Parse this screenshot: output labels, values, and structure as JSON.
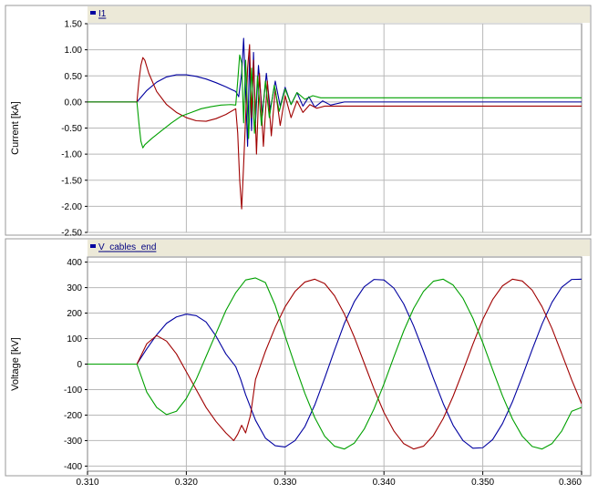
{
  "chart_data": [
    {
      "type": "line",
      "title": "",
      "legend_label": "I1",
      "legend_position": "top-left",
      "xlabel": "",
      "ylabel": "Current [kA]",
      "xlim": [
        0.31,
        0.36
      ],
      "ylim": [
        -2.5,
        1.5
      ],
      "grid": true,
      "x_ticks": [
        "0.310",
        "0.320",
        "0.330",
        "0.340",
        "0.350",
        "0.360"
      ],
      "y_ticks": [
        "1.50",
        "1.00",
        "0.50",
        "0.00",
        "-0.50",
        "-1.00",
        "-1.50",
        "-2.00",
        "-2.50"
      ],
      "series": [
        {
          "color": "#0000a0",
          "points": [
            [
              0.31,
              0.0
            ],
            [
              0.315,
              0.0
            ],
            [
              0.316,
              0.22
            ],
            [
              0.317,
              0.38
            ],
            [
              0.318,
              0.48
            ],
            [
              0.319,
              0.52
            ],
            [
              0.32,
              0.52
            ],
            [
              0.321,
              0.49
            ],
            [
              0.322,
              0.44
            ],
            [
              0.323,
              0.37
            ],
            [
              0.324,
              0.29
            ],
            [
              0.325,
              0.2
            ],
            [
              0.3253,
              0.1
            ],
            [
              0.3256,
              0.55
            ],
            [
              0.3258,
              1.22
            ],
            [
              0.326,
              0.2
            ],
            [
              0.3262,
              -0.85
            ],
            [
              0.3264,
              0.9
            ],
            [
              0.3266,
              -0.55
            ],
            [
              0.3268,
              0.95
            ],
            [
              0.327,
              -0.4
            ],
            [
              0.3273,
              0.7
            ],
            [
              0.3277,
              -0.25
            ],
            [
              0.3281,
              0.55
            ],
            [
              0.3285,
              -0.15
            ],
            [
              0.329,
              0.4
            ],
            [
              0.3295,
              -0.08
            ],
            [
              0.33,
              0.28
            ],
            [
              0.3306,
              -0.05
            ],
            [
              0.3312,
              0.18
            ],
            [
              0.3318,
              -0.08
            ],
            [
              0.3324,
              0.1
            ],
            [
              0.333,
              -0.1
            ],
            [
              0.3338,
              0.02
            ],
            [
              0.3346,
              -0.06
            ],
            [
              0.336,
              0.0
            ],
            [
              0.34,
              0.0
            ],
            [
              0.36,
              0.0
            ]
          ]
        },
        {
          "color": "#a00000",
          "points": [
            [
              0.31,
              0.0
            ],
            [
              0.315,
              0.0
            ],
            [
              0.3152,
              0.4
            ],
            [
              0.3154,
              0.7
            ],
            [
              0.3156,
              0.85
            ],
            [
              0.3158,
              0.8
            ],
            [
              0.3162,
              0.55
            ],
            [
              0.317,
              0.2
            ],
            [
              0.318,
              -0.05
            ],
            [
              0.319,
              -0.2
            ],
            [
              0.32,
              -0.3
            ],
            [
              0.321,
              -0.36
            ],
            [
              0.322,
              -0.37
            ],
            [
              0.323,
              -0.32
            ],
            [
              0.324,
              -0.24
            ],
            [
              0.325,
              -0.13
            ],
            [
              0.3252,
              -0.6
            ],
            [
              0.3254,
              -1.5
            ],
            [
              0.3256,
              -2.05
            ],
            [
              0.3258,
              -1.2
            ],
            [
              0.326,
              -0.3
            ],
            [
              0.3262,
              0.65
            ],
            [
              0.3264,
              1.1
            ],
            [
              0.3266,
              -0.3
            ],
            [
              0.3268,
              0.8
            ],
            [
              0.3271,
              -1.0
            ],
            [
              0.3274,
              0.55
            ],
            [
              0.3278,
              -0.85
            ],
            [
              0.3282,
              0.4
            ],
            [
              0.3286,
              -0.65
            ],
            [
              0.329,
              0.25
            ],
            [
              0.3295,
              -0.45
            ],
            [
              0.33,
              0.12
            ],
            [
              0.3306,
              -0.3
            ],
            [
              0.3312,
              0.02
            ],
            [
              0.3318,
              -0.2
            ],
            [
              0.3325,
              -0.05
            ],
            [
              0.3332,
              -0.12
            ],
            [
              0.334,
              -0.08
            ],
            [
              0.336,
              -0.08
            ],
            [
              0.36,
              -0.08
            ]
          ]
        },
        {
          "color": "#00a000",
          "points": [
            [
              0.31,
              0.0
            ],
            [
              0.315,
              0.0
            ],
            [
              0.3152,
              -0.4
            ],
            [
              0.3154,
              -0.75
            ],
            [
              0.3156,
              -0.88
            ],
            [
              0.3158,
              -0.82
            ],
            [
              0.3165,
              -0.7
            ],
            [
              0.3175,
              -0.55
            ],
            [
              0.3185,
              -0.4
            ],
            [
              0.3195,
              -0.27
            ],
            [
              0.3205,
              -0.2
            ],
            [
              0.3215,
              -0.13
            ],
            [
              0.3225,
              -0.09
            ],
            [
              0.3235,
              -0.06
            ],
            [
              0.3245,
              -0.05
            ],
            [
              0.325,
              -0.06
            ],
            [
              0.3252,
              0.4
            ],
            [
              0.3254,
              0.9
            ],
            [
              0.3256,
              0.75
            ],
            [
              0.3258,
              -0.4
            ],
            [
              0.326,
              0.8
            ],
            [
              0.3263,
              -0.7
            ],
            [
              0.3266,
              0.65
            ],
            [
              0.3269,
              -0.6
            ],
            [
              0.3272,
              0.5
            ],
            [
              0.3276,
              -0.45
            ],
            [
              0.328,
              0.4
            ],
            [
              0.3284,
              -0.3
            ],
            [
              0.3289,
              0.32
            ],
            [
              0.3294,
              -0.18
            ],
            [
              0.33,
              0.25
            ],
            [
              0.3306,
              -0.05
            ],
            [
              0.3312,
              0.18
            ],
            [
              0.332,
              0.05
            ],
            [
              0.3328,
              0.12
            ],
            [
              0.3336,
              0.08
            ],
            [
              0.335,
              0.08
            ],
            [
              0.36,
              0.08
            ]
          ]
        }
      ]
    },
    {
      "type": "line",
      "title": "",
      "legend_label": "V_cables_end",
      "legend_position": "top-left",
      "xlabel": "",
      "ylabel": "Voltage [kV]",
      "xlim": [
        0.31,
        0.36
      ],
      "ylim": [
        -420,
        420
      ],
      "grid": true,
      "x_ticks": [
        "0.310",
        "0.320",
        "0.330",
        "0.340",
        "0.350",
        "0.360"
      ],
      "y_ticks": [
        "400",
        "300",
        "200",
        "100",
        "0",
        "-100",
        "-200",
        "-300",
        "-400"
      ],
      "series": [
        {
          "color": "#0000a0",
          "points": [
            [
              0.31,
              0
            ],
            [
              0.315,
              0
            ],
            [
              0.316,
              60
            ],
            [
              0.317,
              115
            ],
            [
              0.318,
              160
            ],
            [
              0.319,
              185
            ],
            [
              0.32,
              196
            ],
            [
              0.321,
              190
            ],
            [
              0.322,
              165
            ],
            [
              0.323,
              110
            ],
            [
              0.324,
              40
            ],
            [
              0.325,
              -10
            ],
            [
              0.3255,
              -60
            ],
            [
              0.326,
              -120
            ],
            [
              0.327,
              -220
            ],
            [
              0.328,
              -290
            ],
            [
              0.329,
              -320
            ],
            [
              0.33,
              -325
            ],
            [
              0.331,
              -300
            ],
            [
              0.332,
              -245
            ],
            [
              0.333,
              -160
            ],
            [
              0.334,
              -55
            ],
            [
              0.335,
              55
            ],
            [
              0.336,
              160
            ],
            [
              0.337,
              245
            ],
            [
              0.338,
              303
            ],
            [
              0.339,
              332
            ],
            [
              0.34,
              330
            ],
            [
              0.341,
              298
            ],
            [
              0.342,
              236
            ],
            [
              0.343,
              150
            ],
            [
              0.344,
              50
            ],
            [
              0.345,
              -55
            ],
            [
              0.346,
              -155
            ],
            [
              0.347,
              -240
            ],
            [
              0.348,
              -300
            ],
            [
              0.349,
              -330
            ],
            [
              0.35,
              -328
            ],
            [
              0.351,
              -296
            ],
            [
              0.352,
              -233
            ],
            [
              0.353,
              -148
            ],
            [
              0.354,
              -48
            ],
            [
              0.355,
              57
            ],
            [
              0.356,
              157
            ],
            [
              0.357,
              242
            ],
            [
              0.358,
              302
            ],
            [
              0.359,
              332
            ],
            [
              0.36,
              333
            ]
          ]
        },
        {
          "color": "#a00000",
          "points": [
            [
              0.31,
              0
            ],
            [
              0.315,
              0
            ],
            [
              0.316,
              80
            ],
            [
              0.317,
              112
            ],
            [
              0.318,
              90
            ],
            [
              0.319,
              40
            ],
            [
              0.32,
              -30
            ],
            [
              0.321,
              -100
            ],
            [
              0.322,
              -170
            ],
            [
              0.323,
              -225
            ],
            [
              0.324,
              -270
            ],
            [
              0.3248,
              -300
            ],
            [
              0.3252,
              -275
            ],
            [
              0.3256,
              -240
            ],
            [
              0.326,
              -270
            ],
            [
              0.3265,
              -200
            ],
            [
              0.327,
              -60
            ],
            [
              0.328,
              50
            ],
            [
              0.329,
              145
            ],
            [
              0.33,
              225
            ],
            [
              0.331,
              285
            ],
            [
              0.332,
              322
            ],
            [
              0.333,
              333
            ],
            [
              0.334,
              316
            ],
            [
              0.335,
              268
            ],
            [
              0.336,
              196
            ],
            [
              0.337,
              106
            ],
            [
              0.338,
              4
            ],
            [
              0.339,
              -98
            ],
            [
              0.34,
              -190
            ],
            [
              0.341,
              -262
            ],
            [
              0.342,
              -312
            ],
            [
              0.343,
              -333
            ],
            [
              0.344,
              -322
            ],
            [
              0.345,
              -280
            ],
            [
              0.346,
              -213
            ],
            [
              0.347,
              -126
            ],
            [
              0.348,
              -26
            ],
            [
              0.349,
              78
            ],
            [
              0.35,
              175
            ],
            [
              0.351,
              253
            ],
            [
              0.352,
              307
            ],
            [
              0.353,
              333
            ],
            [
              0.354,
              326
            ],
            [
              0.355,
              290
            ],
            [
              0.356,
              225
            ],
            [
              0.357,
              140
            ],
            [
              0.358,
              40
            ],
            [
              0.359,
              -62
            ],
            [
              0.36,
              -155
            ]
          ]
        },
        {
          "color": "#00a000",
          "points": [
            [
              0.31,
              0
            ],
            [
              0.315,
              0
            ],
            [
              0.316,
              -110
            ],
            [
              0.317,
              -170
            ],
            [
              0.318,
              -198
            ],
            [
              0.319,
              -185
            ],
            [
              0.32,
              -135
            ],
            [
              0.321,
              -60
            ],
            [
              0.322,
              30
            ],
            [
              0.323,
              120
            ],
            [
              0.324,
              210
            ],
            [
              0.325,
              280
            ],
            [
              0.326,
              330
            ],
            [
              0.327,
              338
            ],
            [
              0.328,
              320
            ],
            [
              0.329,
              230
            ],
            [
              0.33,
              110
            ],
            [
              0.331,
              -5
            ],
            [
              0.332,
              -115
            ],
            [
              0.333,
              -210
            ],
            [
              0.334,
              -283
            ],
            [
              0.335,
              -322
            ],
            [
              0.336,
              -333
            ],
            [
              0.337,
              -310
            ],
            [
              0.338,
              -255
            ],
            [
              0.339,
              -175
            ],
            [
              0.34,
              -78
            ],
            [
              0.341,
              28
            ],
            [
              0.342,
              130
            ],
            [
              0.343,
              218
            ],
            [
              0.344,
              285
            ],
            [
              0.345,
              325
            ],
            [
              0.346,
              333
            ],
            [
              0.347,
              310
            ],
            [
              0.348,
              258
            ],
            [
              0.349,
              180
            ],
            [
              0.35,
              84
            ],
            [
              0.351,
              -22
            ],
            [
              0.352,
              -125
            ],
            [
              0.353,
              -215
            ],
            [
              0.354,
              -283
            ],
            [
              0.355,
              -323
            ],
            [
              0.356,
              -333
            ],
            [
              0.357,
              -312
            ],
            [
              0.358,
              -262
            ],
            [
              0.359,
              -185
            ],
            [
              0.36,
              -170
            ]
          ]
        }
      ]
    }
  ]
}
